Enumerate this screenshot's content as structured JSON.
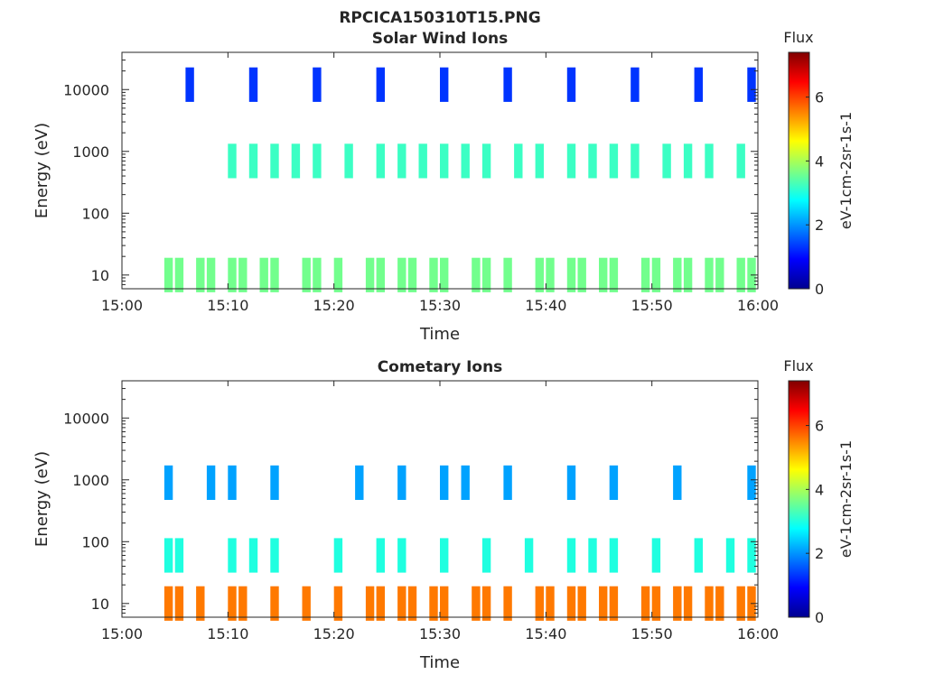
{
  "figure": {
    "title": "RPCICA150310T15.PNG"
  },
  "chart_data": [
    {
      "type": "heatmap",
      "title": "Solar Wind Ions",
      "xlabel": "Time",
      "ylabel": "Energy (eV)",
      "x_ticks": [
        "15:00",
        "15:10",
        "15:20",
        "15:30",
        "15:40",
        "15:50",
        "16:00"
      ],
      "xlim": [
        "15:00",
        "16:00"
      ],
      "y_ticks": [
        "10",
        "100",
        "1000",
        "10000"
      ],
      "ylim": [
        6,
        40000
      ],
      "yscale": "log",
      "colorbar": {
        "label": "eV-1cm-2sr-1s-1",
        "title": "Flux",
        "ticks": [
          0,
          2,
          4,
          6
        ],
        "range": [
          0,
          7.4
        ]
      },
      "bands": [
        {
          "energy": 10,
          "times": [
            "15:04",
            "15:05",
            "15:07",
            "15:08",
            "15:10",
            "15:11",
            "15:13",
            "15:14",
            "15:17",
            "15:18",
            "15:20",
            "15:23",
            "15:24",
            "15:26",
            "15:27",
            "15:29",
            "15:30",
            "15:33",
            "15:34",
            "15:36",
            "15:39",
            "15:40",
            "15:42",
            "15:43",
            "15:45",
            "15:46",
            "15:49",
            "15:50",
            "15:52",
            "15:53",
            "15:55",
            "15:56",
            "15:58",
            "15:59"
          ],
          "flux": 3.6
        },
        {
          "energy": 700,
          "times": [
            "15:10",
            "15:12",
            "15:14",
            "15:16",
            "15:18",
            "15:21",
            "15:24",
            "15:26",
            "15:28",
            "15:30",
            "15:32",
            "15:34",
            "15:37",
            "15:39",
            "15:42",
            "15:44",
            "15:46",
            "15:48",
            "15:51",
            "15:53",
            "15:55",
            "15:58"
          ],
          "flux": 3.2
        },
        {
          "energy": 12000,
          "times": [
            "15:06",
            "15:12",
            "15:18",
            "15:24",
            "15:30",
            "15:36",
            "15:42",
            "15:48",
            "15:54",
            "15:59"
          ],
          "flux": 1.3
        }
      ]
    },
    {
      "type": "heatmap",
      "title": "Cometary Ions",
      "xlabel": "Time",
      "ylabel": "Energy (eV)",
      "x_ticks": [
        "15:00",
        "15:10",
        "15:20",
        "15:30",
        "15:40",
        "15:50",
        "16:00"
      ],
      "xlim": [
        "15:00",
        "16:00"
      ],
      "y_ticks": [
        "10",
        "100",
        "1000",
        "10000"
      ],
      "ylim": [
        6,
        40000
      ],
      "yscale": "log",
      "colorbar": {
        "label": "eV-1cm-2sr-1s-1",
        "title": "Flux",
        "ticks": [
          0,
          2,
          4,
          6
        ],
        "range": [
          0,
          7.4
        ]
      },
      "bands": [
        {
          "energy": 10,
          "times": [
            "15:04",
            "15:05",
            "15:07",
            "15:10",
            "15:11",
            "15:14",
            "15:17",
            "15:20",
            "15:23",
            "15:24",
            "15:26",
            "15:27",
            "15:29",
            "15:30",
            "15:33",
            "15:34",
            "15:36",
            "15:39",
            "15:40",
            "15:42",
            "15:43",
            "15:45",
            "15:46",
            "15:49",
            "15:50",
            "15:52",
            "15:53",
            "15:55",
            "15:56",
            "15:58",
            "15:59"
          ],
          "flux": 5.6
        },
        {
          "energy": 60,
          "times": [
            "15:04",
            "15:05",
            "15:10",
            "15:12",
            "15:14",
            "15:20",
            "15:24",
            "15:26",
            "15:30",
            "15:34",
            "15:38",
            "15:42",
            "15:44",
            "15:46",
            "15:50",
            "15:54",
            "15:57",
            "15:59"
          ],
          "flux": 3.0
        },
        {
          "energy": 900,
          "times": [
            "15:04",
            "15:08",
            "15:10",
            "15:14",
            "15:22",
            "15:26",
            "15:30",
            "15:32",
            "15:36",
            "15:42",
            "15:46",
            "15:52",
            "15:59"
          ],
          "flux": 2.1
        }
      ]
    }
  ]
}
